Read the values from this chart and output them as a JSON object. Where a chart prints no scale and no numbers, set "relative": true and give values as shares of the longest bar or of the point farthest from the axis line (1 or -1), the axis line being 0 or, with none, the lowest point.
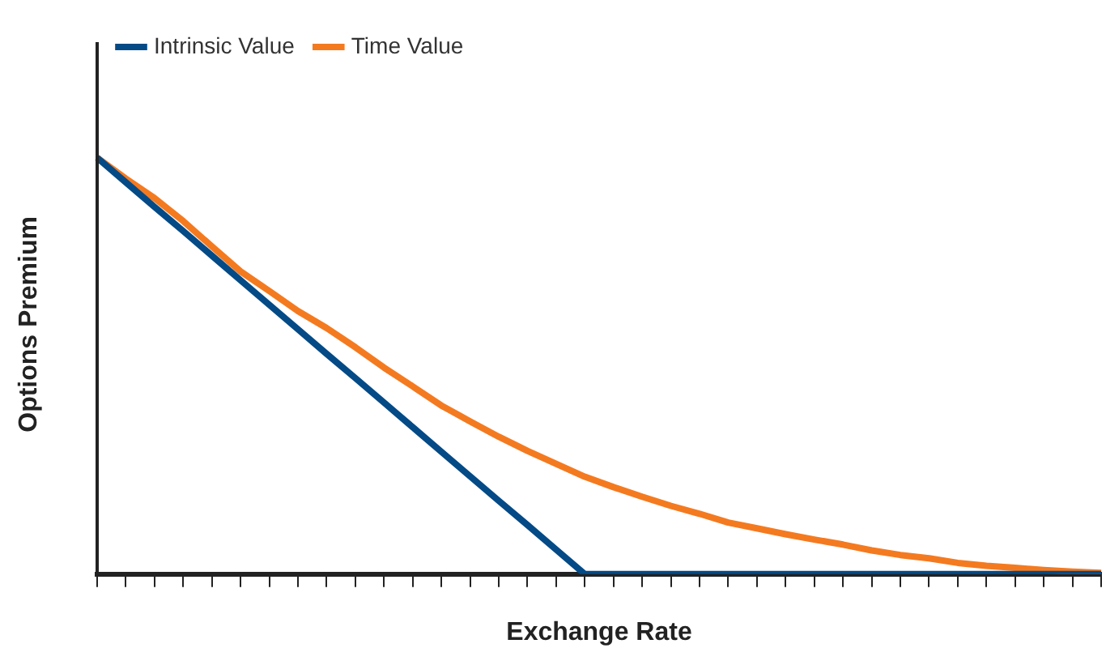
{
  "chart_data": {
    "type": "line",
    "relative": true,
    "xlabel": "Exchange Rate",
    "ylabel": "Options Premium",
    "legend": "top left",
    "marker": "none",
    "line_style": "solid",
    "categories": [
      null,
      null,
      null,
      null,
      null,
      null,
      null,
      null,
      null,
      null,
      null,
      null,
      null,
      null,
      null,
      null,
      null,
      null,
      null,
      null,
      null,
      null,
      null,
      null,
      null,
      null,
      null,
      null,
      null,
      null,
      null,
      null,
      null,
      null,
      null,
      null
    ],
    "series": [
      {
        "name": "Intrinsic Value",
        "color": "#034a86",
        "values": [
          1,
          0.941,
          0.882,
          0.824,
          0.765,
          0.706,
          0.647,
          0.588,
          0.529,
          0.471,
          0.412,
          0.353,
          0.294,
          0.235,
          0.176,
          0.118,
          0.059,
          0,
          0,
          0,
          0,
          0,
          0,
          0,
          0,
          0,
          0,
          0,
          0,
          0,
          0,
          0,
          0,
          0,
          0,
          0
        ]
      },
      {
        "name": "Time Value",
        "color": "#f47a20",
        "values": [
          1,
          0.95,
          0.903,
          0.848,
          0.787,
          0.727,
          0.68,
          0.632,
          0.591,
          0.545,
          0.496,
          0.451,
          0.405,
          0.367,
          0.33,
          0.296,
          0.265,
          0.234,
          0.209,
          0.186,
          0.164,
          0.145,
          0.124,
          0.11,
          0.096,
          0.083,
          0.071,
          0.057,
          0.046,
          0.038,
          0.027,
          0.02,
          0.015,
          0.01,
          0.006,
          0.003
        ]
      }
    ]
  }
}
